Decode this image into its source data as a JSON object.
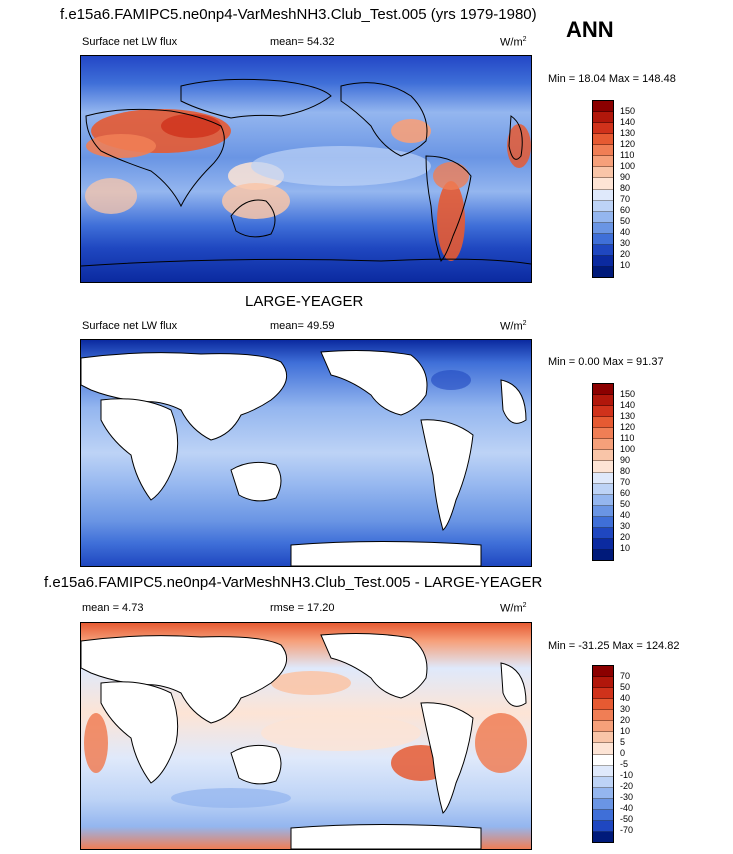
{
  "header": {
    "main_title": "f.e15a6.FAMIPC5.ne0np4-VarMeshNH3.Club_Test.005 (yrs 1979-1980)",
    "season": "ANN"
  },
  "panels": [
    {
      "id": "test",
      "variable": "Surface net LW flux",
      "mean": "mean=  54.32",
      "units": "W/m",
      "units_exp": "2",
      "minmax": "Min =  18.04 Max = 148.48"
    },
    {
      "id": "obs",
      "title": "LARGE-YEAGER",
      "variable": "Surface net LW flux",
      "mean": "mean=  49.59",
      "units": "W/m",
      "units_exp": "2",
      "minmax": "Min =   0.00 Max =  91.37"
    },
    {
      "id": "diff",
      "title": "f.e15a6.FAMIPC5.ne0np4-VarMeshNH3.Club_Test.005 - LARGE-YEAGER",
      "mean": "mean =   4.73",
      "rmse": "rmse =  17.20",
      "units": "W/m",
      "units_exp": "2",
      "minmax": "Min = -31.25 Max = 124.82"
    }
  ],
  "colorbars": {
    "abs": {
      "labels": [
        "150",
        "140",
        "130",
        "120",
        "110",
        "100",
        "90",
        "80",
        "70",
        "60",
        "50",
        "40",
        "30",
        "20",
        "10"
      ],
      "colors": [
        "#8b0000",
        "#b1170b",
        "#d0321b",
        "#e65a32",
        "#f07e55",
        "#f6a07a",
        "#f9c5a8",
        "#fde4d5",
        "#dfe9fb",
        "#bdd3f6",
        "#94b6ef",
        "#6a95e4",
        "#3f6fd8",
        "#1f47c0",
        "#0b2aa0",
        "#001a7a"
      ]
    },
    "diff": {
      "labels": [
        "70",
        "50",
        "40",
        "30",
        "20",
        "10",
        "5",
        "0",
        "-5",
        "-10",
        "-20",
        "-30",
        "-40",
        "-50",
        "-70"
      ],
      "colors": [
        "#8b0000",
        "#b1170b",
        "#d0321b",
        "#e65a32",
        "#f07e55",
        "#f6a07a",
        "#f9c5a8",
        "#fde4d5",
        "#ffffff",
        "#dfe9fb",
        "#bdd3f6",
        "#94b6ef",
        "#6a95e4",
        "#3f6fd8",
        "#1f47c0",
        "#001a7a"
      ]
    }
  },
  "colors": {
    "land": "#ffffff",
    "coast": "#000000"
  }
}
